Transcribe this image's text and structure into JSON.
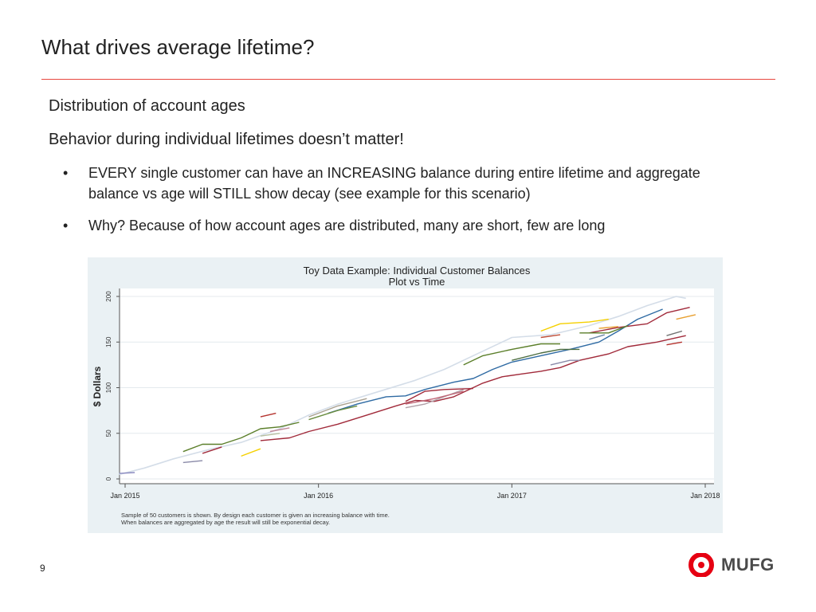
{
  "slide": {
    "title": "What drives average lifetime?",
    "heading1": "Distribution of account ages",
    "heading2": "Behavior during individual lifetimes doesn’t matter!",
    "bullets": [
      {
        "marker": "•",
        "text": "EVERY single customer can have an INCREASING balance during entire lifetime and aggregate balance vs age will STILL show decay  (see example for this scenario)"
      },
      {
        "marker": "•",
        "text": "Why? Because of how account ages are distributed, many are short, few are long"
      }
    ],
    "page_number": "9",
    "logo_text": "MUFG",
    "accent_color": "#e8483f",
    "logo_color": "#e60012"
  },
  "chart_data": {
    "type": "line",
    "title": "Toy Data Example: Individual Customer Balances",
    "subtitle": "Plot vs Time",
    "xlabel": "",
    "ylabel": "$ Dollars",
    "x_tick_labels": [
      "Jan 2015",
      "Jan 2016",
      "Jan 2017",
      "Jan 2018"
    ],
    "x_ticks": [
      2015,
      2016,
      2017,
      2018
    ],
    "xlim": [
      2015,
      2018
    ],
    "y_ticks": [
      0,
      50,
      100,
      150,
      200
    ],
    "ylim": [
      0,
      200
    ],
    "grid": true,
    "background": "#eaf1f4",
    "note": "Sample of 50 customers is shown. By design each customer is given an increasing balance with time.",
    "note2": "When balances are aggregated by age the result will still be exponential decay.",
    "series": [
      {
        "color": "#d4dde8",
        "points": [
          [
            2014.97,
            5
          ],
          [
            2015.1,
            12
          ],
          [
            2015.25,
            22
          ],
          [
            2015.45,
            33
          ],
          [
            2015.6,
            40
          ],
          [
            2015.8,
            55
          ],
          [
            2015.95,
            70
          ],
          [
            2016.1,
            82
          ],
          [
            2016.3,
            95
          ],
          [
            2016.5,
            108
          ],
          [
            2016.65,
            120
          ],
          [
            2016.85,
            140
          ],
          [
            2017.0,
            155
          ],
          [
            2017.2,
            158
          ],
          [
            2017.4,
            168
          ],
          [
            2017.55,
            178
          ],
          [
            2017.7,
            190
          ],
          [
            2017.85,
            200
          ],
          [
            2017.9,
            198
          ]
        ]
      },
      {
        "color": "#2e6aa3",
        "points": [
          [
            2016.05,
            72
          ],
          [
            2016.2,
            82
          ],
          [
            2016.35,
            90
          ],
          [
            2016.45,
            91
          ],
          [
            2016.55,
            98
          ],
          [
            2016.7,
            106
          ],
          [
            2016.8,
            110
          ],
          [
            2016.9,
            120
          ],
          [
            2017.0,
            128
          ],
          [
            2017.15,
            135
          ],
          [
            2017.3,
            142
          ],
          [
            2017.45,
            150
          ],
          [
            2017.55,
            162
          ],
          [
            2017.65,
            175
          ],
          [
            2017.78,
            186
          ]
        ]
      },
      {
        "color": "#a12a3a",
        "points": [
          [
            2015.7,
            42
          ],
          [
            2015.85,
            45
          ],
          [
            2015.95,
            52
          ],
          [
            2016.1,
            60
          ],
          [
            2016.25,
            70
          ],
          [
            2016.4,
            80
          ],
          [
            2016.5,
            86
          ],
          [
            2016.6,
            85
          ],
          [
            2016.7,
            90
          ],
          [
            2016.85,
            105
          ],
          [
            2016.95,
            112
          ],
          [
            2017.05,
            115
          ],
          [
            2017.15,
            118
          ],
          [
            2017.25,
            122
          ],
          [
            2017.35,
            130
          ],
          [
            2017.5,
            137
          ],
          [
            2017.6,
            145
          ],
          [
            2017.75,
            150
          ],
          [
            2017.9,
            157
          ]
        ]
      },
      {
        "color": "#a12a3a",
        "points": [
          [
            2017.4,
            160
          ],
          [
            2017.55,
            166
          ],
          [
            2017.7,
            170
          ],
          [
            2017.8,
            182
          ],
          [
            2017.92,
            188
          ]
        ]
      },
      {
        "color": "#5b7f2a",
        "points": [
          [
            2015.3,
            30
          ],
          [
            2015.4,
            38
          ],
          [
            2015.5,
            38
          ],
          [
            2015.6,
            45
          ],
          [
            2015.7,
            55
          ],
          [
            2015.8,
            57
          ],
          [
            2015.9,
            62
          ]
        ]
      },
      {
        "color": "#5b7f2a",
        "points": [
          [
            2016.75,
            125
          ],
          [
            2016.85,
            135
          ],
          [
            2017.0,
            142
          ],
          [
            2017.15,
            148
          ],
          [
            2017.25,
            148
          ]
        ]
      },
      {
        "color": "#5b7f2a",
        "points": [
          [
            2017.35,
            160
          ],
          [
            2017.5,
            160
          ],
          [
            2017.6,
            168
          ]
        ]
      },
      {
        "color": "#4d6e41",
        "points": [
          [
            2017.0,
            130
          ],
          [
            2017.15,
            138
          ],
          [
            2017.25,
            142
          ],
          [
            2017.35,
            142
          ]
        ]
      },
      {
        "color": "#6a8d3f",
        "points": [
          [
            2015.95,
            65
          ],
          [
            2016.1,
            75
          ],
          [
            2016.2,
            80
          ]
        ]
      },
      {
        "color": "#a8a090",
        "points": [
          [
            2015.95,
            68
          ],
          [
            2016.1,
            80
          ],
          [
            2016.25,
            88
          ]
        ]
      },
      {
        "color": "#f5d000",
        "points": [
          [
            2017.15,
            162
          ],
          [
            2017.25,
            170
          ],
          [
            2017.4,
            172
          ],
          [
            2017.5,
            175
          ]
        ]
      },
      {
        "color": "#f5d000",
        "points": [
          [
            2015.6,
            25
          ],
          [
            2015.7,
            33
          ]
        ]
      },
      {
        "color": "#e8a030",
        "points": [
          [
            2017.45,
            165
          ],
          [
            2017.55,
            167
          ]
        ]
      },
      {
        "color": "#e8a030",
        "points": [
          [
            2017.85,
            175
          ],
          [
            2017.95,
            180
          ]
        ]
      },
      {
        "color": "#b5342f",
        "points": [
          [
            2015.7,
            68
          ],
          [
            2015.78,
            72
          ]
        ]
      },
      {
        "color": "#c0503a",
        "points": [
          [
            2017.15,
            155
          ],
          [
            2017.25,
            158
          ]
        ]
      },
      {
        "color": "#b5342f",
        "points": [
          [
            2017.8,
            147
          ],
          [
            2017.88,
            150
          ]
        ]
      },
      {
        "color": "#b0a0a8",
        "points": [
          [
            2016.45,
            78
          ],
          [
            2016.55,
            82
          ],
          [
            2016.65,
            90
          ],
          [
            2016.75,
            98
          ]
        ]
      },
      {
        "color": "#c06878",
        "points": [
          [
            2016.45,
            82
          ],
          [
            2016.6,
            88
          ],
          [
            2016.75,
            96
          ]
        ]
      },
      {
        "color": "#a12a3a",
        "points": [
          [
            2016.45,
            85
          ],
          [
            2016.55,
            96
          ],
          [
            2016.65,
            98
          ],
          [
            2016.8,
            99
          ]
        ]
      },
      {
        "color": "#8a8aa8",
        "points": [
          [
            2015.3,
            18
          ],
          [
            2015.4,
            20
          ]
        ]
      },
      {
        "color": "#a12a3a",
        "points": [
          [
            2015.4,
            28
          ],
          [
            2015.5,
            35
          ]
        ]
      },
      {
        "color": "#8a8aa8",
        "points": [
          [
            2017.2,
            125
          ],
          [
            2017.3,
            130
          ],
          [
            2017.35,
            130
          ]
        ]
      },
      {
        "color": "#6b86a8",
        "points": [
          [
            2017.4,
            153
          ],
          [
            2017.48,
            158
          ]
        ]
      },
      {
        "color": "#707070",
        "points": [
          [
            2017.8,
            157
          ],
          [
            2017.88,
            162
          ]
        ]
      },
      {
        "color": "#8a8ac0",
        "points": [
          [
            2014.97,
            6
          ],
          [
            2015.05,
            7
          ]
        ]
      },
      {
        "color": "#b8c0a0",
        "points": [
          [
            2015.7,
            47
          ],
          [
            2015.8,
            50
          ]
        ]
      },
      {
        "color": "#c08898",
        "points": [
          [
            2015.75,
            52
          ],
          [
            2015.85,
            56
          ]
        ]
      }
    ]
  }
}
